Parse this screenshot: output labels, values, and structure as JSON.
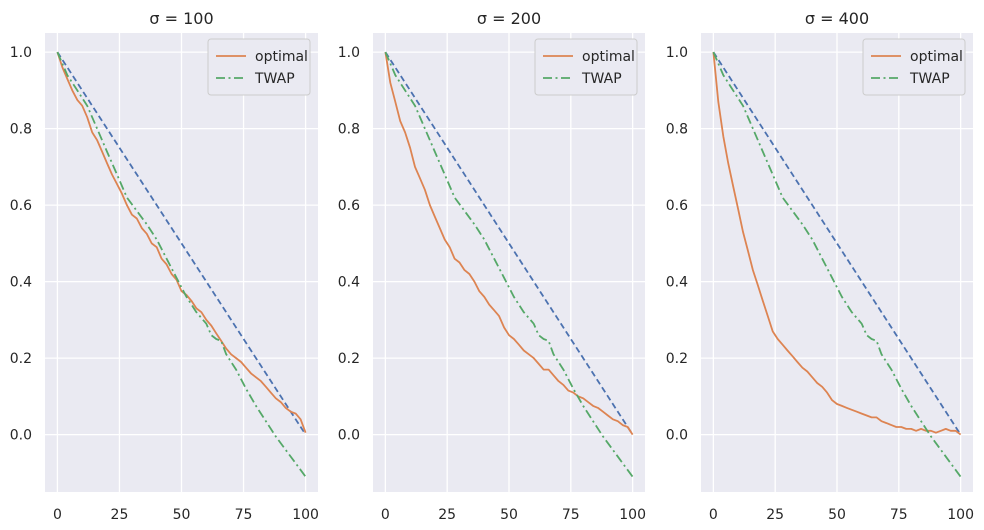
{
  "chart_data": [
    {
      "type": "line",
      "title": "σ = 100",
      "xlabel": "",
      "ylabel": "",
      "xlim": [
        -5,
        105
      ],
      "ylim": [
        -0.15,
        1.05
      ],
      "xticks": [
        0,
        25,
        50,
        75,
        100
      ],
      "xtick_labels": [
        "0",
        "25",
        "50",
        "75",
        "100"
      ],
      "yticks": [
        0.0,
        0.2,
        0.4,
        0.6,
        0.8,
        1.0
      ],
      "ytick_labels": [
        "0.0",
        "0.2",
        "0.4",
        "0.6",
        "0.8",
        "1.0"
      ],
      "grid": true,
      "legend_position": "top-right",
      "series": [
        {
          "color": "#4c72b0",
          "style": "dashed",
          "x": [
            0,
            100
          ],
          "y": [
            1.0,
            0.0
          ]
        },
        {
          "name": "optimal",
          "color": "#dd8452",
          "style": "solid",
          "x": [
            0,
            2,
            4,
            6,
            8,
            10,
            12,
            14,
            16,
            18,
            20,
            22,
            24,
            26,
            28,
            30,
            32,
            34,
            36,
            38,
            40,
            42,
            44,
            46,
            48,
            50,
            52,
            54,
            56,
            58,
            60,
            62,
            64,
            66,
            68,
            70,
            72,
            74,
            76,
            78,
            80,
            82,
            84,
            86,
            88,
            90,
            92,
            94,
            96,
            98,
            100
          ],
          "y": [
            1.0,
            0.96,
            0.93,
            0.9,
            0.875,
            0.86,
            0.83,
            0.79,
            0.77,
            0.74,
            0.71,
            0.68,
            0.655,
            0.63,
            0.6,
            0.575,
            0.565,
            0.54,
            0.525,
            0.5,
            0.49,
            0.46,
            0.445,
            0.42,
            0.405,
            0.375,
            0.365,
            0.35,
            0.33,
            0.32,
            0.3,
            0.285,
            0.265,
            0.245,
            0.225,
            0.21,
            0.2,
            0.19,
            0.175,
            0.16,
            0.15,
            0.14,
            0.125,
            0.11,
            0.095,
            0.085,
            0.07,
            0.06,
            0.055,
            0.04,
            0.005
          ]
        },
        {
          "name": "TWAP",
          "color": "#55a868",
          "style": "dashdot",
          "x": [
            0,
            4,
            8,
            12,
            16,
            20,
            24,
            28,
            32,
            36,
            40,
            44,
            48,
            52,
            56,
            60,
            62,
            64,
            66,
            68,
            72,
            76,
            80,
            84,
            88,
            92,
            96,
            100
          ],
          "y": [
            1.0,
            0.94,
            0.9,
            0.86,
            0.8,
            0.74,
            0.68,
            0.62,
            0.585,
            0.55,
            0.51,
            0.46,
            0.41,
            0.36,
            0.32,
            0.29,
            0.26,
            0.25,
            0.245,
            0.21,
            0.17,
            0.12,
            0.075,
            0.035,
            -0.005,
            -0.04,
            -0.075,
            -0.11
          ]
        }
      ]
    },
    {
      "type": "line",
      "title": "σ = 200",
      "xlabel": "",
      "ylabel": "",
      "xlim": [
        -5,
        105
      ],
      "ylim": [
        -0.15,
        1.05
      ],
      "xticks": [
        0,
        25,
        50,
        75,
        100
      ],
      "xtick_labels": [
        "0",
        "25",
        "50",
        "75",
        "100"
      ],
      "yticks": [
        0.0,
        0.2,
        0.4,
        0.6,
        0.8,
        1.0
      ],
      "ytick_labels": [
        "0.0",
        "0.2",
        "0.4",
        "0.6",
        "0.8",
        "1.0"
      ],
      "grid": true,
      "legend_position": "top-right",
      "series": [
        {
          "color": "#4c72b0",
          "style": "dashed",
          "x": [
            0,
            100
          ],
          "y": [
            1.0,
            0.0
          ]
        },
        {
          "name": "optimal",
          "color": "#dd8452",
          "style": "solid",
          "x": [
            0,
            2,
            4,
            6,
            8,
            10,
            12,
            14,
            16,
            18,
            20,
            22,
            24,
            26,
            28,
            30,
            32,
            34,
            36,
            38,
            40,
            42,
            44,
            46,
            48,
            50,
            52,
            54,
            56,
            58,
            60,
            62,
            64,
            66,
            68,
            70,
            72,
            74,
            76,
            78,
            80,
            82,
            84,
            86,
            88,
            90,
            92,
            94,
            96,
            98,
            100
          ],
          "y": [
            1.0,
            0.92,
            0.87,
            0.82,
            0.79,
            0.75,
            0.7,
            0.67,
            0.64,
            0.6,
            0.57,
            0.54,
            0.51,
            0.49,
            0.46,
            0.45,
            0.43,
            0.42,
            0.4,
            0.375,
            0.36,
            0.34,
            0.325,
            0.31,
            0.28,
            0.26,
            0.25,
            0.235,
            0.22,
            0.21,
            0.2,
            0.185,
            0.17,
            0.17,
            0.155,
            0.14,
            0.13,
            0.115,
            0.11,
            0.1,
            0.095,
            0.085,
            0.075,
            0.07,
            0.06,
            0.05,
            0.04,
            0.035,
            0.025,
            0.02,
            0.0
          ]
        },
        {
          "name": "TWAP",
          "color": "#55a868",
          "style": "dashdot",
          "x": [
            0,
            4,
            8,
            12,
            16,
            20,
            24,
            28,
            32,
            36,
            40,
            44,
            48,
            52,
            56,
            60,
            62,
            64,
            66,
            68,
            72,
            76,
            80,
            84,
            88,
            92,
            96,
            100
          ],
          "y": [
            1.0,
            0.94,
            0.9,
            0.86,
            0.8,
            0.74,
            0.68,
            0.62,
            0.585,
            0.55,
            0.51,
            0.46,
            0.41,
            0.36,
            0.32,
            0.29,
            0.26,
            0.25,
            0.245,
            0.21,
            0.17,
            0.12,
            0.075,
            0.035,
            -0.005,
            -0.04,
            -0.075,
            -0.11
          ]
        }
      ]
    },
    {
      "type": "line",
      "title": "σ = 400",
      "xlabel": "",
      "ylabel": "",
      "xlim": [
        -5,
        105
      ],
      "ylim": [
        -0.15,
        1.05
      ],
      "xticks": [
        0,
        25,
        50,
        75,
        100
      ],
      "xtick_labels": [
        "0",
        "25",
        "50",
        "75",
        "100"
      ],
      "yticks": [
        0.0,
        0.2,
        0.4,
        0.6,
        0.8,
        1.0
      ],
      "ytick_labels": [
        "0.0",
        "0.2",
        "0.4",
        "0.6",
        "0.8",
        "1.0"
      ],
      "grid": true,
      "legend_position": "top-right",
      "series": [
        {
          "color": "#4c72b0",
          "style": "dashed",
          "x": [
            0,
            100
          ],
          "y": [
            1.0,
            0.0
          ]
        },
        {
          "name": "optimal",
          "color": "#dd8452",
          "style": "solid",
          "x": [
            0,
            2,
            4,
            6,
            8,
            10,
            12,
            14,
            16,
            18,
            20,
            22,
            24,
            26,
            28,
            30,
            32,
            34,
            36,
            38,
            40,
            42,
            44,
            46,
            48,
            50,
            52,
            54,
            56,
            58,
            60,
            62,
            64,
            66,
            68,
            70,
            72,
            74,
            76,
            78,
            80,
            82,
            84,
            86,
            88,
            90,
            92,
            94,
            96,
            98,
            100
          ],
          "y": [
            1.0,
            0.87,
            0.78,
            0.71,
            0.65,
            0.59,
            0.53,
            0.48,
            0.43,
            0.39,
            0.35,
            0.31,
            0.27,
            0.25,
            0.235,
            0.22,
            0.205,
            0.19,
            0.175,
            0.165,
            0.15,
            0.135,
            0.125,
            0.11,
            0.09,
            0.08,
            0.075,
            0.07,
            0.065,
            0.06,
            0.055,
            0.05,
            0.045,
            0.045,
            0.035,
            0.03,
            0.025,
            0.02,
            0.02,
            0.015,
            0.015,
            0.01,
            0.015,
            0.01,
            0.01,
            0.005,
            0.01,
            0.015,
            0.01,
            0.01,
            0.0
          ]
        },
        {
          "name": "TWAP",
          "color": "#55a868",
          "style": "dashdot",
          "x": [
            0,
            4,
            8,
            12,
            16,
            20,
            24,
            28,
            32,
            36,
            40,
            44,
            48,
            52,
            56,
            60,
            62,
            64,
            66,
            68,
            72,
            76,
            80,
            84,
            88,
            92,
            96,
            100
          ],
          "y": [
            1.0,
            0.94,
            0.9,
            0.86,
            0.8,
            0.74,
            0.68,
            0.62,
            0.585,
            0.55,
            0.51,
            0.46,
            0.41,
            0.36,
            0.32,
            0.29,
            0.26,
            0.25,
            0.245,
            0.21,
            0.17,
            0.12,
            0.075,
            0.035,
            -0.005,
            -0.04,
            -0.075,
            -0.11
          ]
        }
      ]
    }
  ],
  "colors": {
    "plot_background": "#eaeaf2",
    "grid": "#ffffff",
    "text": "#262626"
  }
}
